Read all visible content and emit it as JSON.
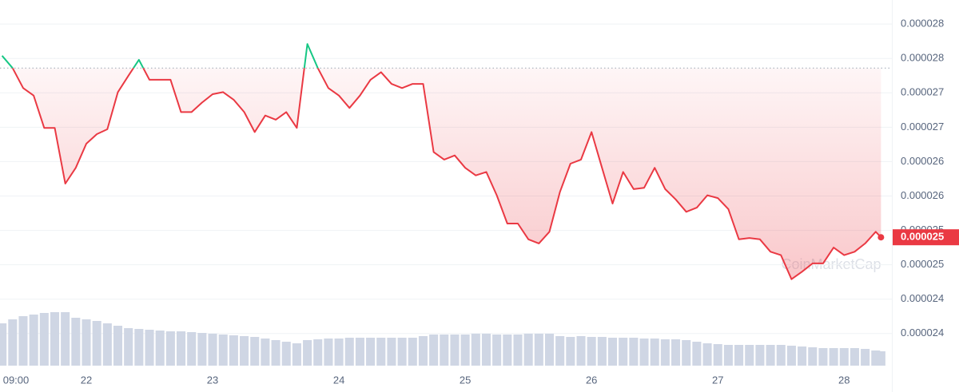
{
  "chart_data": {
    "type": "line",
    "color": "#ea3943",
    "up_color": "#16c784",
    "baseline": 2.736e-05,
    "grid": true,
    "xlim": [
      7.6,
      175.4
    ],
    "ylim": [
      2.301e-05,
      2.835e-05
    ],
    "xticks": [
      {
        "value": 9,
        "label": "09:00"
      },
      {
        "value": 24,
        "label": "22"
      },
      {
        "value": 48,
        "label": "23"
      },
      {
        "value": 72,
        "label": "24"
      },
      {
        "value": 96,
        "label": "25"
      },
      {
        "value": 120,
        "label": "26"
      },
      {
        "value": 144,
        "label": "27"
      },
      {
        "value": 168,
        "label": "28"
      }
    ],
    "yticks": [
      {
        "value": 2.8e-05,
        "label": "0.000028"
      },
      {
        "value": 2.75e-05,
        "label": "0.000028"
      },
      {
        "value": 2.7e-05,
        "label": "0.000027"
      },
      {
        "value": 2.65e-05,
        "label": "0.000027"
      },
      {
        "value": 2.6e-05,
        "label": "0.000026"
      },
      {
        "value": 2.55e-05,
        "label": "0.000026"
      },
      {
        "value": 2.5e-05,
        "label": "0.000025"
      },
      {
        "value": 2.45e-05,
        "label": "0.000025"
      },
      {
        "value": 2.4e-05,
        "label": "0.000024"
      },
      {
        "value": 2.35e-05,
        "label": "0.000024"
      }
    ],
    "x": [
      8,
      10,
      12,
      14,
      16,
      18,
      20,
      22,
      24,
      26,
      28,
      30,
      32,
      34,
      36,
      38,
      40,
      42,
      44,
      46,
      48,
      50,
      52,
      54,
      56,
      58,
      60,
      62,
      64,
      66,
      68,
      70,
      72,
      74,
      76,
      78,
      80,
      82,
      84,
      86,
      88,
      90,
      92,
      94,
      96,
      98,
      100,
      102,
      104,
      106,
      108,
      110,
      112,
      114,
      116,
      118,
      120,
      122,
      124,
      126,
      128,
      130,
      132,
      134,
      136,
      138,
      140,
      142,
      144,
      146,
      148,
      150,
      152,
      154,
      156,
      158,
      160,
      162,
      164,
      166,
      168,
      170,
      172,
      174,
      175
    ],
    "values": [
      2.754e-05,
      2.736e-05,
      2.707e-05,
      2.696e-05,
      2.649e-05,
      2.649e-05,
      2.568e-05,
      2.591e-05,
      2.626e-05,
      2.64e-05,
      2.647e-05,
      2.701e-05,
      2.725e-05,
      2.748e-05,
      2.719e-05,
      2.719e-05,
      2.719e-05,
      2.672e-05,
      2.672e-05,
      2.686e-05,
      2.698e-05,
      2.701e-05,
      2.69e-05,
      2.672e-05,
      2.643e-05,
      2.667e-05,
      2.661e-05,
      2.672e-05,
      2.649e-05,
      2.771e-05,
      2.736e-05,
      2.707e-05,
      2.696e-05,
      2.678e-05,
      2.696e-05,
      2.719e-05,
      2.73e-05,
      2.713e-05,
      2.707e-05,
      2.713e-05,
      2.713e-05,
      2.614e-05,
      2.603e-05,
      2.609e-05,
      2.591e-05,
      2.58e-05,
      2.585e-05,
      2.551e-05,
      2.51e-05,
      2.51e-05,
      2.487e-05,
      2.481e-05,
      2.498e-05,
      2.556e-05,
      2.597e-05,
      2.603e-05,
      2.643e-05,
      2.591e-05,
      2.539e-05,
      2.585e-05,
      2.56e-05,
      2.562e-05,
      2.591e-05,
      2.56e-05,
      2.545e-05,
      2.527e-05,
      2.533e-05,
      2.551e-05,
      2.547e-05,
      2.531e-05,
      2.487e-05,
      2.489e-05,
      2.487e-05,
      2.469e-05,
      2.464e-05,
      2.429e-05,
      2.44e-05,
      2.452e-05,
      2.452e-05,
      2.475e-05,
      2.464e-05,
      2.469e-05,
      2.481e-05,
      2.498e-05,
      2.49e-05
    ],
    "volume": [
      53,
      58,
      62,
      64,
      66,
      67,
      67,
      60,
      58,
      56,
      53,
      50,
      47,
      46,
      45,
      44,
      43,
      43,
      42,
      41,
      40,
      39,
      38,
      37,
      36,
      34,
      32,
      30,
      28,
      32,
      33,
      34,
      34,
      35,
      35,
      35,
      35,
      35,
      35,
      35,
      37,
      39,
      39,
      39,
      39,
      40,
      40,
      39,
      39,
      39,
      40,
      40,
      40,
      37,
      36,
      37,
      36,
      36,
      35,
      35,
      35,
      34,
      34,
      33,
      33,
      32,
      30,
      28,
      27,
      26,
      26,
      26,
      26,
      26,
      26,
      25,
      24,
      23,
      22,
      22,
      22,
      22,
      21,
      19,
      18
    ],
    "volume_color": "#cfd6e4",
    "vlim": [
      0,
      80
    ],
    "last_value_label": "0.000025",
    "watermark": "CoinMarketCap"
  }
}
